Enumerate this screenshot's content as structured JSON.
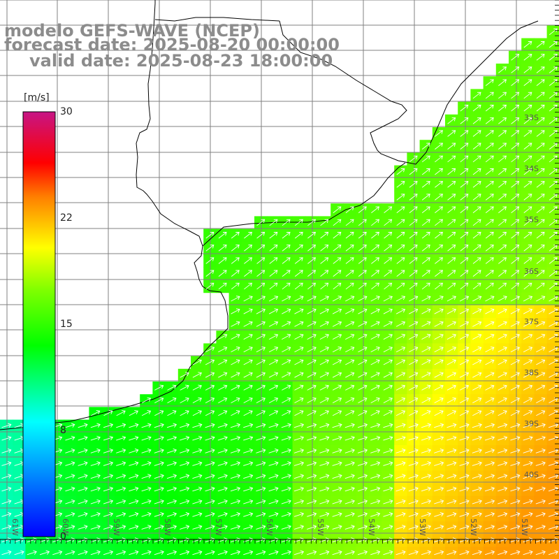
{
  "title": {
    "line1": "modelo GEFS-WAVE (NCEP)",
    "line2": "forecast date: 2025-08-20 00:00:00",
    "line3": "valid date: 2025-08-23 18:00:00"
  },
  "colorbar": {
    "unit": "[m/s]",
    "ticks": [
      "30",
      "22",
      "15",
      "8",
      "0"
    ]
  },
  "lat_labels": [
    "33S",
    "34S",
    "35S",
    "36S",
    "37S",
    "38S",
    "39S",
    "40S"
  ],
  "lon_labels": [
    "61W",
    "60W",
    "59W",
    "58W",
    "57W",
    "56W",
    "55W",
    "54W",
    "53W",
    "52W",
    "51W"
  ],
  "colors": {
    "land": "#ffffff",
    "coast": "#000000",
    "grid": "#808080",
    "arrow": "#ffffff",
    "colormap": [
      "#0000ff",
      "#00ffff",
      "#00ff00",
      "#ffff00",
      "#ff7f00",
      "#ff0000",
      "#c71585"
    ]
  }
}
